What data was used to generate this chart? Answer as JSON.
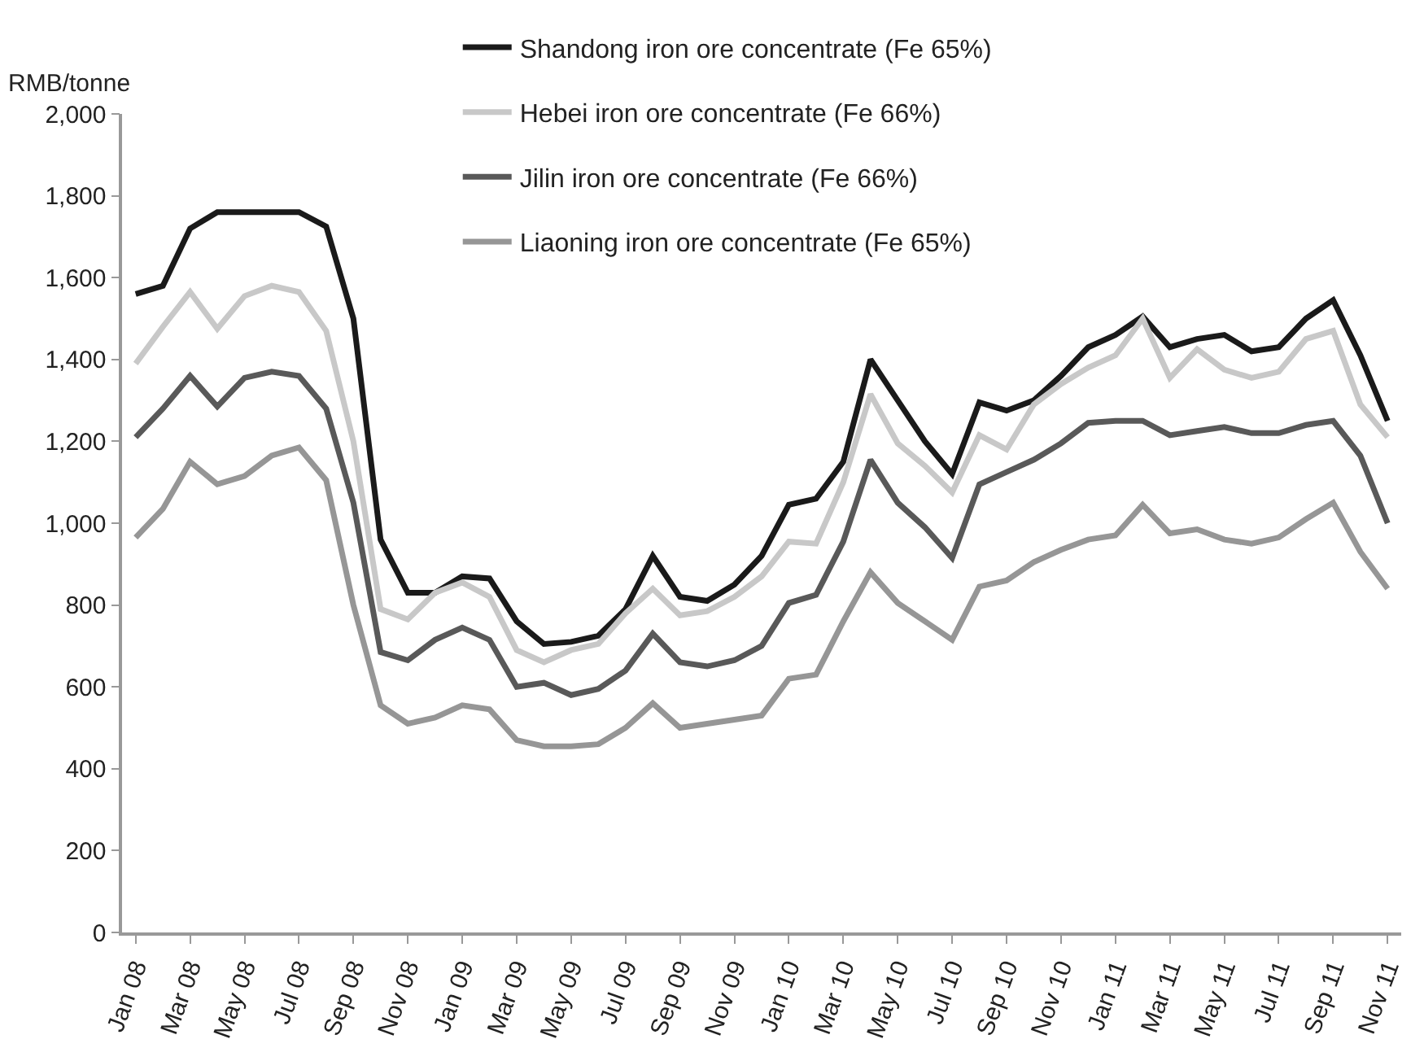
{
  "chart_data": {
    "type": "line",
    "ylabel": "RMB/tonne",
    "categories": [
      "Jan 08",
      null,
      "Mar 08",
      null,
      "May 08",
      null,
      "Jul 08",
      null,
      "Sep 08",
      null,
      "Nov 08",
      null,
      "Jan 09",
      null,
      "Mar 09",
      null,
      "May 09",
      null,
      "Jul 09",
      null,
      "Sep 09",
      null,
      "Nov 09",
      null,
      "Jan 10",
      null,
      "Mar 10",
      null,
      "May 10",
      null,
      "Jul 10",
      null,
      "Sep 10",
      null,
      "Nov 10",
      null,
      "Jan 11",
      null,
      "Mar 11",
      null,
      "May 11",
      null,
      "Jul 11",
      null,
      "Sep 11",
      null,
      "Nov 11"
    ],
    "series": [
      {
        "name": "Shandong iron ore concentrate (Fe 65%)",
        "color": "#1a1a1a",
        "values": [
          1560,
          1580,
          1720,
          1760,
          1760,
          1760,
          1760,
          1725,
          1500,
          960,
          830,
          830,
          870,
          865,
          760,
          705,
          710,
          725,
          790,
          920,
          820,
          810,
          850,
          920,
          1045,
          1060,
          1150,
          1400,
          1300,
          1200,
          1120,
          1295,
          1275,
          1300,
          1360,
          1430,
          1460,
          1505,
          1430,
          1450,
          1460,
          1420,
          1430,
          1500,
          1545,
          1410,
          1250
        ]
      },
      {
        "name": "Hebei iron ore concentrate (Fe 66%)",
        "color": "#c8c8c8",
        "values": [
          1390,
          1480,
          1565,
          1475,
          1555,
          1580,
          1565,
          1470,
          1200,
          790,
          765,
          830,
          855,
          820,
          690,
          660,
          690,
          705,
          780,
          840,
          775,
          785,
          820,
          870,
          955,
          950,
          1100,
          1315,
          1195,
          1140,
          1075,
          1215,
          1180,
          1290,
          1340,
          1380,
          1410,
          1500,
          1355,
          1425,
          1375,
          1355,
          1370,
          1450,
          1470,
          1290,
          1210
        ]
      },
      {
        "name": "Jilin iron ore concentrate (Fe 66%)",
        "color": "#595959",
        "values": [
          1210,
          1280,
          1360,
          1285,
          1355,
          1370,
          1360,
          1280,
          1050,
          685,
          665,
          715,
          745,
          715,
          600,
          610,
          580,
          595,
          640,
          730,
          660,
          650,
          665,
          700,
          805,
          825,
          955,
          1155,
          1050,
          990,
          915,
          1095,
          1125,
          1155,
          1195,
          1245,
          1250,
          1250,
          1215,
          1225,
          1235,
          1220,
          1220,
          1240,
          1250,
          1165,
          1000
        ]
      },
      {
        "name": "Liaoning iron ore concentrate (Fe 65%)",
        "color": "#969696",
        "values": [
          965,
          1035,
          1150,
          1095,
          1115,
          1165,
          1185,
          1105,
          800,
          555,
          510,
          525,
          555,
          545,
          470,
          455,
          455,
          460,
          500,
          560,
          500,
          510,
          520,
          530,
          620,
          630,
          760,
          880,
          805,
          760,
          715,
          845,
          860,
          905,
          935,
          960,
          970,
          1045,
          975,
          985,
          960,
          950,
          965,
          1010,
          1050,
          930,
          840
        ]
      }
    ],
    "ylim": [
      0,
      2000
    ],
    "yticks": [
      0,
      200,
      400,
      600,
      800,
      {
        "value": 1000,
        "label": "1,000"
      },
      {
        "value": 1200,
        "label": "1,200"
      },
      {
        "value": 1400,
        "label": "1,400"
      },
      {
        "value": 1600,
        "label": "1,600"
      },
      {
        "value": 1800,
        "label": "1,800"
      },
      {
        "value": 2000,
        "label": "2,000"
      }
    ],
    "legend": "top",
    "marker": "none",
    "line_style": "solid"
  }
}
